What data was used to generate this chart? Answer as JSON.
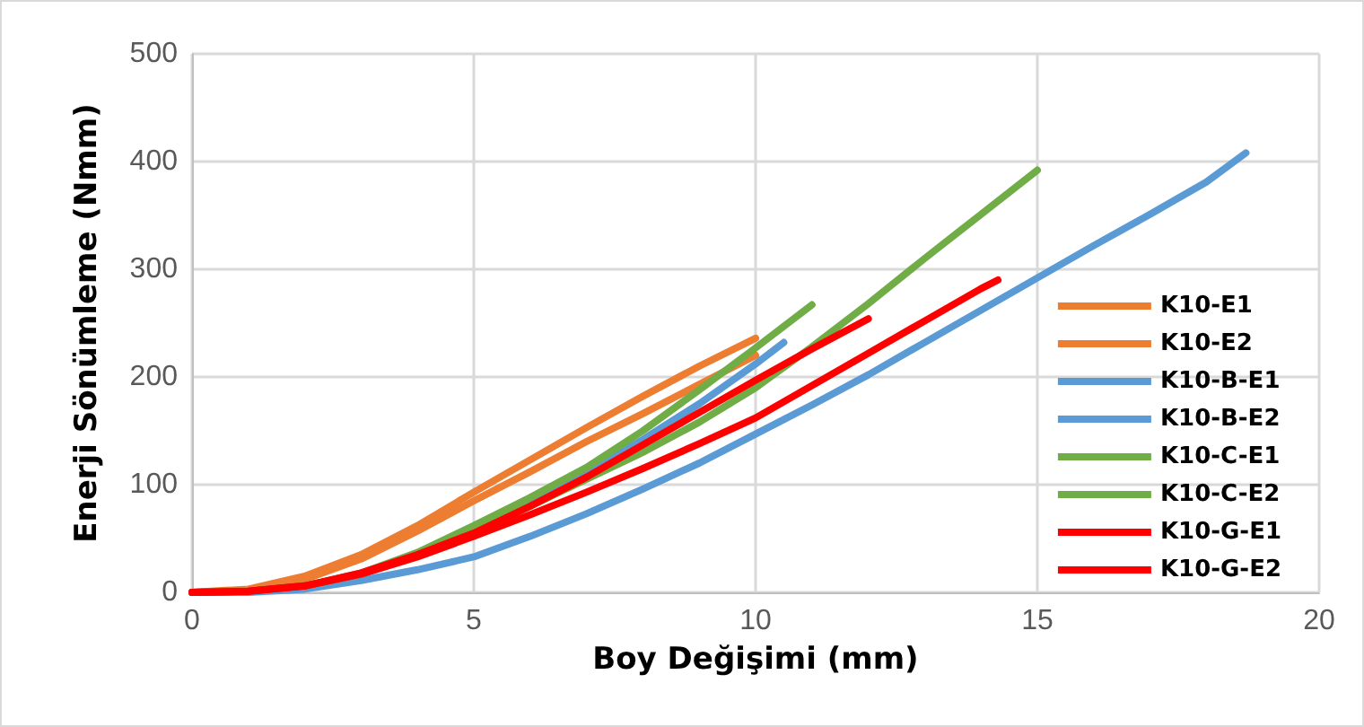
{
  "chart_data": {
    "type": "line",
    "xlabel": "Boy Değişimi (mm)",
    "ylabel": "Enerji Sönümleme (Nmm)",
    "xlim": [
      0,
      20
    ],
    "xticks": [
      0,
      5,
      10,
      15,
      20
    ],
    "ylim": [
      0,
      500
    ],
    "yticks": [
      0,
      100,
      200,
      300,
      400,
      500
    ],
    "grid": true,
    "legend": "right",
    "marker": "none",
    "line_style": "solid",
    "series": [
      {
        "name": "K10-E1",
        "color": "#ed7d31",
        "x": [
          0,
          1,
          2,
          3,
          4,
          5,
          6,
          7,
          8,
          9,
          10
        ],
        "values": [
          0,
          3,
          15,
          35,
          62,
          93,
          123,
          153,
          182,
          210,
          236
        ]
      },
      {
        "name": "K10-E2",
        "color": "#ed7d31",
        "x": [
          0,
          1,
          2,
          3,
          4,
          5,
          6,
          7,
          8,
          9,
          10
        ],
        "values": [
          0,
          2,
          12,
          31,
          57,
          85,
          112,
          140,
          166,
          193,
          220
        ]
      },
      {
        "name": "K10-B-E1",
        "color": "#5b9bd5",
        "x": [
          0,
          1,
          2,
          3,
          4,
          5,
          6,
          7,
          8,
          9,
          10,
          11,
          12,
          13,
          14,
          15,
          16,
          17,
          18,
          18.7
        ],
        "values": [
          0,
          0,
          3,
          11,
          21,
          33,
          52,
          73,
          96,
          120,
          147,
          174,
          202,
          232,
          262,
          292,
          322,
          351,
          381,
          408
        ]
      },
      {
        "name": "K10-B-E2",
        "color": "#5b9bd5",
        "x": [
          0,
          1,
          2,
          3,
          4,
          5,
          6,
          7,
          8,
          9,
          10,
          10.5
        ],
        "values": [
          0,
          1,
          6,
          17,
          35,
          58,
          84,
          112,
          142,
          175,
          212,
          232
        ]
      },
      {
        "name": "K10-C-E1",
        "color": "#70ad47",
        "x": [
          2,
          3,
          4,
          5,
          6,
          7,
          8,
          9,
          10,
          11
        ],
        "values": [
          6,
          18,
          37,
          62,
          88,
          116,
          150,
          188,
          227,
          267
        ]
      },
      {
        "name": "K10-C-E2",
        "color": "#70ad47",
        "x": [
          2,
          3,
          4,
          5,
          6,
          7,
          8,
          9,
          10,
          11,
          12,
          13,
          14,
          15
        ],
        "values": [
          6,
          17,
          35,
          58,
          80,
          105,
          130,
          158,
          190,
          228,
          268,
          310,
          351,
          392
        ]
      },
      {
        "name": "K10-G-E1",
        "color": "#ff0000",
        "x": [
          0,
          1,
          2,
          3,
          4,
          5,
          6,
          7,
          8,
          9,
          10,
          11,
          12
        ],
        "values": [
          0,
          1,
          6,
          18,
          35,
          55,
          80,
          107,
          137,
          167,
          197,
          226,
          254
        ]
      },
      {
        "name": "K10-G-E2",
        "color": "#ff0000",
        "x": [
          0,
          1,
          2,
          3,
          4,
          5,
          6,
          7,
          8,
          9,
          10,
          11,
          12,
          13,
          14,
          14.3
        ],
        "values": [
          0,
          1,
          6,
          17,
          33,
          52,
          72,
          93,
          115,
          138,
          162,
          192,
          222,
          252,
          282,
          290
        ]
      }
    ]
  }
}
